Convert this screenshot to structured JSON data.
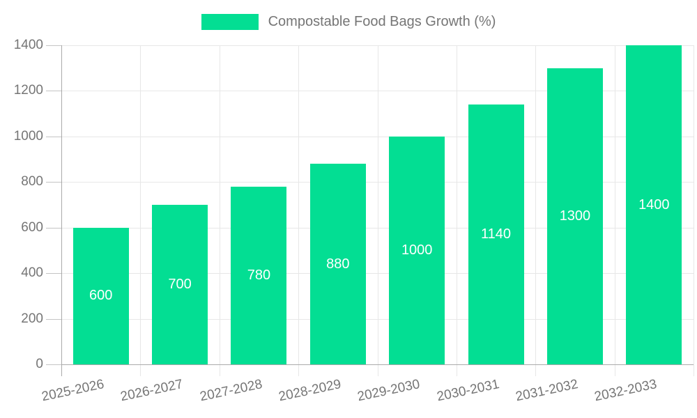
{
  "legend": {
    "label": "Compostable Food Bags Growth (%)",
    "swatch_color": "#03DE93"
  },
  "chart_data": {
    "type": "bar",
    "title": "Compostable Food Bags Growth (%)",
    "series_name": "Compostable Food Bags Growth (%)",
    "categories": [
      "2025-2026",
      "2026-2027",
      "2027-2028",
      "2028-2029",
      "2029-2030",
      "2030-2031",
      "2031-2032",
      "2032-2033"
    ],
    "values": [
      600,
      700,
      780,
      880,
      1000,
      1140,
      1300,
      1400
    ],
    "bar_value_labels": [
      "600",
      "700",
      "780",
      "880",
      "1000",
      "1140",
      "1300",
      "1400"
    ],
    "xlabel": "",
    "ylabel": "",
    "ylim": [
      0,
      1400
    ],
    "ytick_step": 200,
    "yticks": [
      0,
      200,
      400,
      600,
      800,
      1000,
      1200,
      1400
    ],
    "grid": true,
    "legend_position": "top",
    "colors": {
      "bar": "#03DE93",
      "bar_label": "#ffffff",
      "axis_text": "#757575",
      "grid_line": "#e7e7e7",
      "axis_line": "#a9a9a9",
      "tick_line": "#c4c4c4"
    }
  }
}
